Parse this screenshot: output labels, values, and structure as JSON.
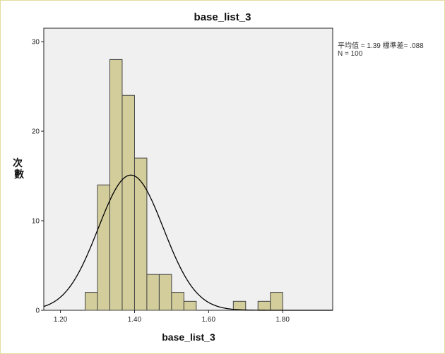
{
  "chart_data": {
    "type": "bar",
    "title": "base_list_3",
    "xlabel": "base_list_3",
    "ylabel": "次\n數",
    "xlim": [
      1.155,
      1.935
    ],
    "ylim": [
      0,
      31.5
    ],
    "x_ticks": [
      {
        "value": 1.2,
        "label": "1.20"
      },
      {
        "value": 1.4,
        "label": "1.40"
      },
      {
        "value": 1.6,
        "label": "1.60"
      },
      {
        "value": 1.8,
        "label": "1.80"
      }
    ],
    "y_ticks": [
      {
        "value": 0,
        "label": "0"
      },
      {
        "value": 10,
        "label": "10"
      },
      {
        "value": 20,
        "label": "20"
      },
      {
        "value": 30,
        "label": "30"
      }
    ],
    "bin_width": 0.0333,
    "bins": [
      {
        "start": 1.2667,
        "count": 2
      },
      {
        "start": 1.3,
        "count": 14
      },
      {
        "start": 1.3333,
        "count": 28
      },
      {
        "start": 1.3667,
        "count": 24
      },
      {
        "start": 1.4,
        "count": 17
      },
      {
        "start": 1.4333,
        "count": 4
      },
      {
        "start": 1.4667,
        "count": 4
      },
      {
        "start": 1.5,
        "count": 2
      },
      {
        "start": 1.5333,
        "count": 1
      },
      {
        "start": 1.6667,
        "count": 1
      },
      {
        "start": 1.7333,
        "count": 1
      },
      {
        "start": 1.7667,
        "count": 2
      }
    ],
    "normal_curve": {
      "mean": 1.39,
      "sd": 0.088,
      "n": 100
    },
    "stats_text": {
      "line1": "平均值 = 1.39 標準差= .088",
      "line2": "N = 100"
    },
    "colors": {
      "bar_fill": "#d3cd9b",
      "bar_stroke": "#444444",
      "plot_bg": "#f0f0f0",
      "curve": "#000000"
    }
  }
}
